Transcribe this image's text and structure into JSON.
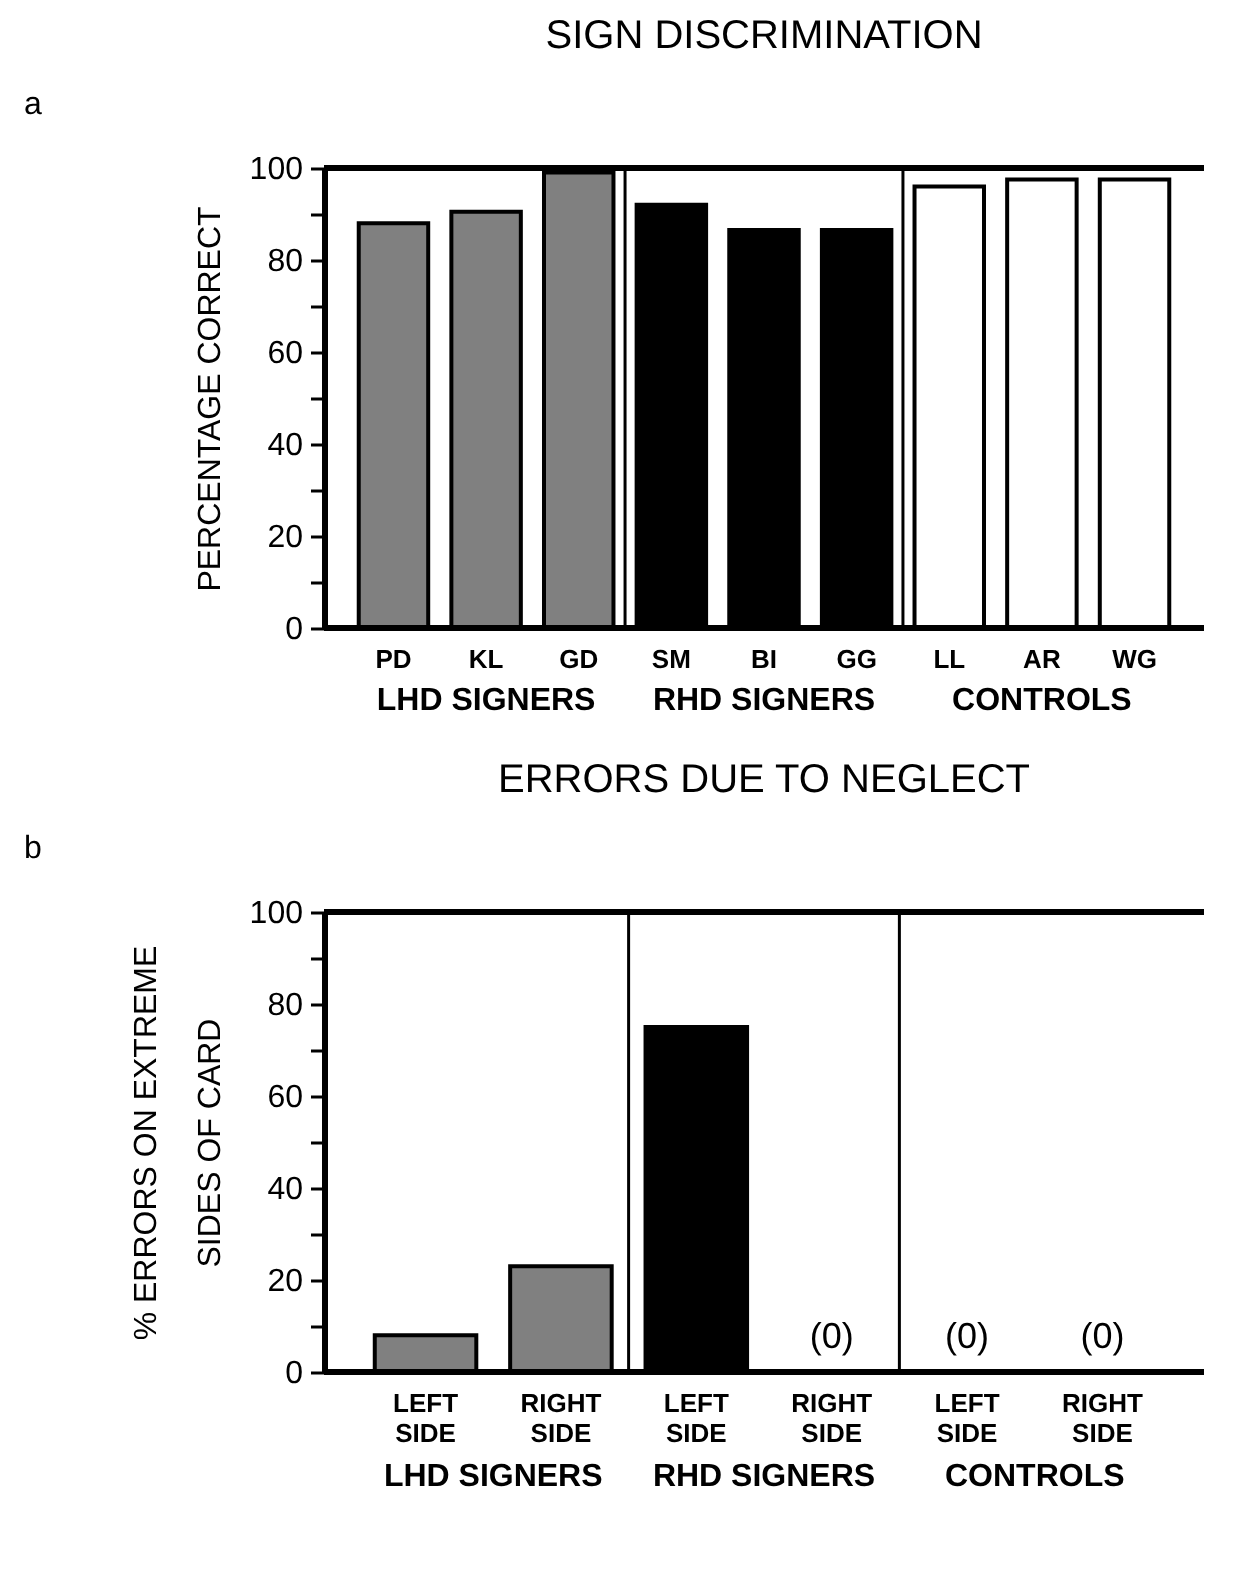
{
  "chart_data": [
    {
      "type": "bar",
      "title": "SIGN DISCRIMINATION",
      "ylabel": "PERCENTAGE CORRECT",
      "annotations": [
        "a"
      ],
      "categories": [
        "PD",
        "KL",
        "GD",
        "SM",
        "BI",
        "GG",
        "LL",
        "AR",
        "WG"
      ],
      "series": [
        {
          "name": "LHD SIGNERS",
          "color": "#808080",
          "values": [
            88,
            90.5,
            99,
            null,
            null,
            null,
            null,
            null,
            null
          ]
        },
        {
          "name": "RHD SIGNERS",
          "color": "#000000",
          "values": [
            null,
            null,
            null,
            92,
            86.5,
            86.5,
            null,
            null,
            null
          ]
        },
        {
          "name": "CONTROLS",
          "color": "#ffffff",
          "values": [
            null,
            null,
            null,
            null,
            null,
            null,
            96,
            97.5,
            97.5
          ]
        }
      ],
      "ylim": [
        0,
        100
      ],
      "yticks": [
        0,
        {
          "value": 10,
          "label": null
        },
        20,
        {
          "value": 30,
          "label": null
        },
        40,
        {
          "value": 50,
          "label": null
        },
        60,
        {
          "value": 70,
          "label": null
        },
        80,
        {
          "value": 90,
          "label": null
        },
        100
      ]
    },
    {
      "type": "bar",
      "title": "ERRORS DUE TO NEGLECT",
      "ylabel": "% ERRORS ON EXTREME SIDES OF CARD",
      "annotations": [
        "b"
      ],
      "categories": [
        "LEFT SIDE",
        "RIGHT SIDE",
        "LEFT SIDE",
        "RIGHT SIDE",
        "LEFT SIDE",
        "RIGHT SIDE"
      ],
      "series": [
        {
          "name": "LHD SIGNERS",
          "color": "#808080",
          "values": [
            8,
            23,
            null,
            null,
            null,
            null
          ]
        },
        {
          "name": "RHD SIGNERS",
          "color": "#000000",
          "values": [
            null,
            null,
            75,
            0,
            null,
            null
          ],
          "value_labels": [
            null,
            null,
            null,
            "(0)",
            null,
            null
          ]
        },
        {
          "name": "CONTROLS",
          "values": [
            null,
            null,
            null,
            null,
            0,
            0
          ],
          "value_labels": [
            null,
            null,
            null,
            null,
            "(0)",
            "(0)"
          ]
        }
      ],
      "ylim": [
        0,
        100
      ],
      "yticks": [
        0,
        {
          "value": 10,
          "label": null
        },
        20,
        {
          "value": 30,
          "label": null
        },
        40,
        {
          "value": 50,
          "label": null
        },
        60,
        {
          "value": 70,
          "label": null
        },
        80,
        {
          "value": 90,
          "label": null
        },
        100
      ]
    }
  ]
}
